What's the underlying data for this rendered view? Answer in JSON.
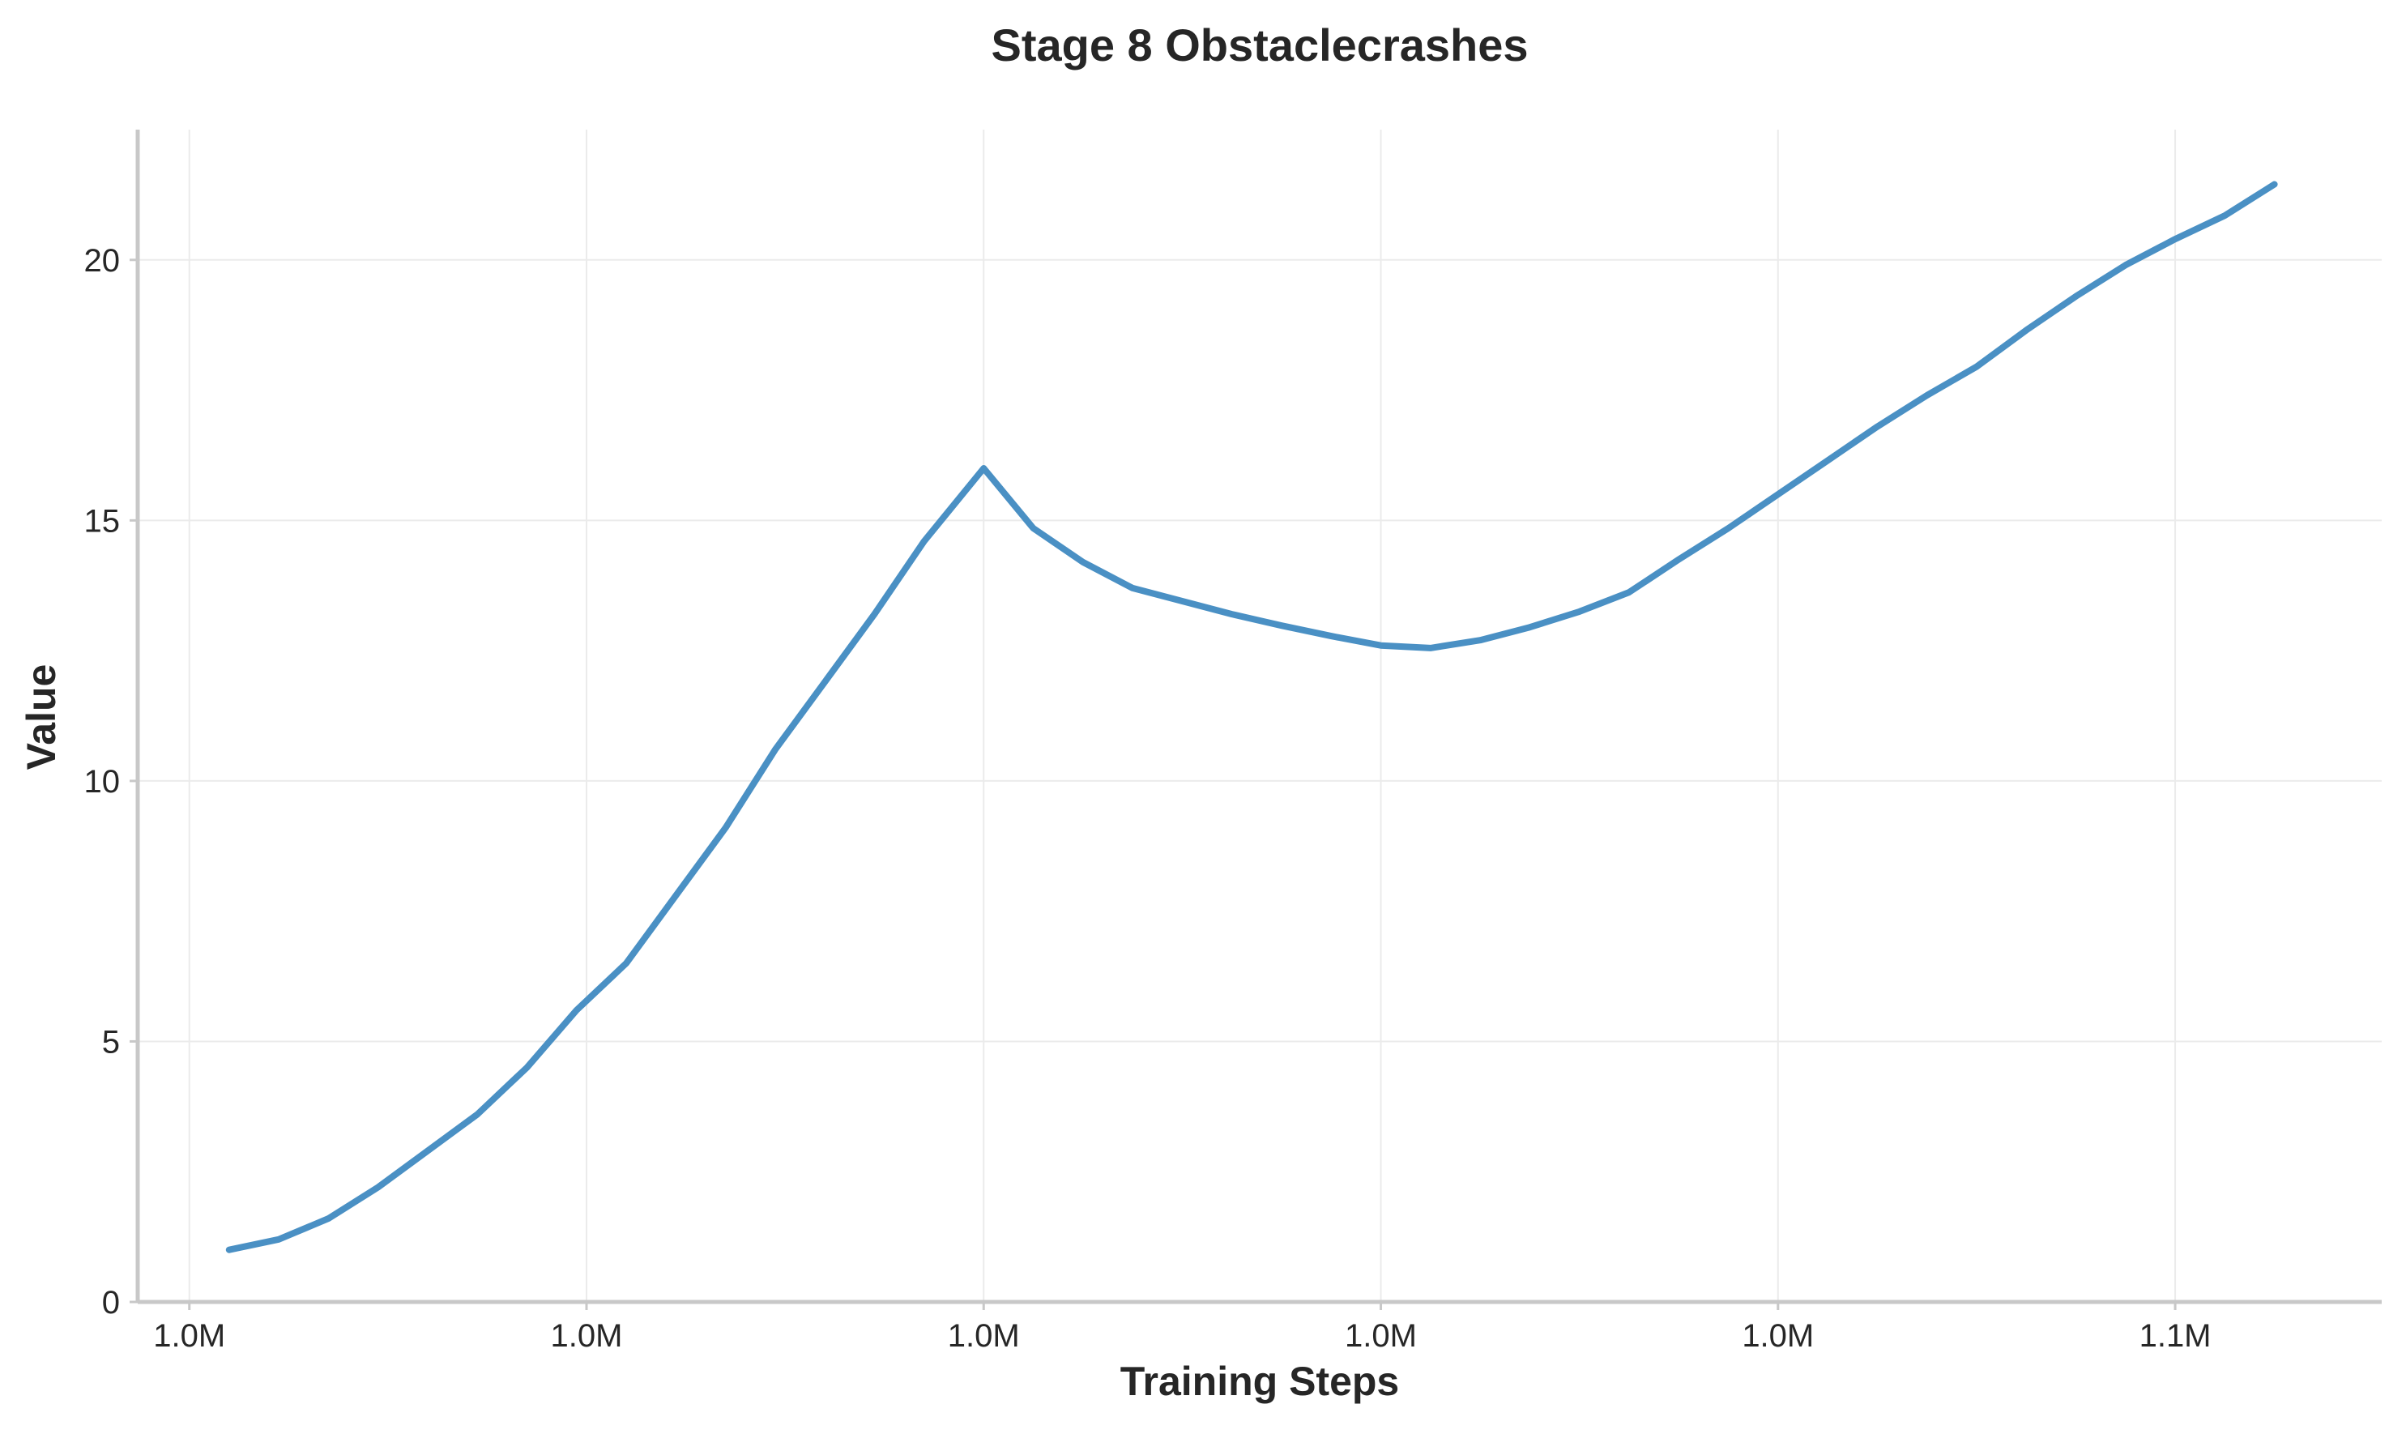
{
  "chart_data": {
    "type": "line",
    "title": "Stage 8 Obstaclecrashes",
    "xlabel": "Training Steps",
    "ylabel": "Value",
    "x_ticks": [
      {
        "pos": 0,
        "label": "1.0M"
      },
      {
        "pos": 10,
        "label": "1.0M"
      },
      {
        "pos": 20,
        "label": "1.0M"
      },
      {
        "pos": 30,
        "label": "1.0M"
      },
      {
        "pos": 40,
        "label": "1.0M"
      },
      {
        "pos": 50,
        "label": "1.1M"
      }
    ],
    "y_ticks": [
      0,
      5,
      10,
      15,
      20
    ],
    "xlim": [
      -1.3,
      55.2
    ],
    "ylim": [
      0,
      22.5
    ],
    "grid": true,
    "legend": "none",
    "series": [
      {
        "color": "#4a90c4",
        "x": [
          1,
          2.25,
          3.5,
          4.75,
          6,
          7.25,
          8.5,
          9.75,
          11,
          12.25,
          13.5,
          14.75,
          16,
          17.25,
          18.5,
          20,
          21.25,
          22.5,
          23.75,
          25,
          26.25,
          27.5,
          28.75,
          30,
          31.25,
          32.5,
          33.75,
          35,
          36.25,
          37.5,
          38.75,
          40,
          41.25,
          42.5,
          43.75,
          45,
          46.25,
          47.5,
          48.75,
          50,
          51.25,
          52.5
        ],
        "y": [
          1.0,
          1.2,
          1.6,
          2.2,
          2.9,
          3.6,
          4.5,
          5.6,
          6.5,
          7.8,
          9.1,
          10.6,
          11.9,
          13.2,
          14.6,
          16.0,
          14.85,
          14.2,
          13.7,
          13.45,
          13.2,
          12.98,
          12.78,
          12.6,
          12.55,
          12.7,
          12.95,
          13.25,
          13.62,
          14.25,
          14.85,
          15.5,
          16.15,
          16.8,
          17.4,
          17.95,
          18.65,
          19.3,
          19.9,
          20.4,
          20.85,
          21.45
        ]
      }
    ]
  }
}
